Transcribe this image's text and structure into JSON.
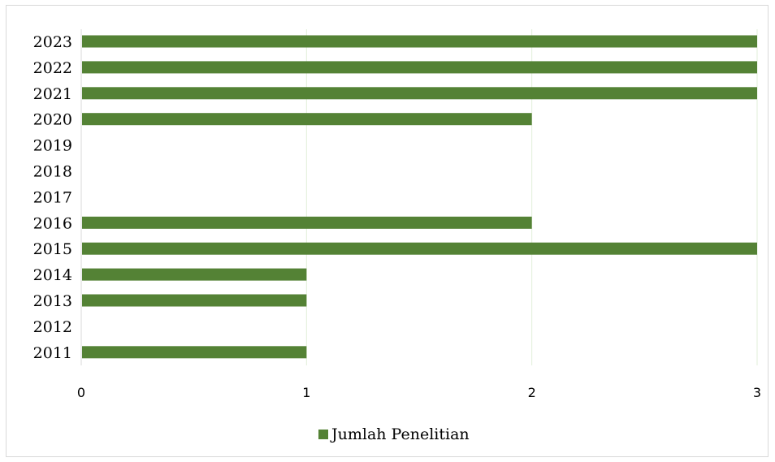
{
  "chart_data": {
    "type": "bar",
    "orientation": "horizontal",
    "categories": [
      "2023",
      "2022",
      "2021",
      "2020",
      "2019",
      "2018",
      "2017",
      "2016",
      "2015",
      "2014",
      "2013",
      "2012",
      "2011"
    ],
    "series": [
      {
        "name": "Jumlah Penelitian",
        "values": [
          3,
          3,
          3,
          2,
          0,
          0,
          0,
          2,
          3,
          1,
          1,
          0,
          1
        ]
      }
    ],
    "xticks": [
      "0",
      "1",
      "2",
      "3"
    ],
    "xlim": [
      0,
      3
    ],
    "grid": "vertical",
    "legend_position": "bottom",
    "colors": {
      "bar": "#548235",
      "grid": "#e2efda",
      "axis": "#d9d9d9"
    }
  }
}
